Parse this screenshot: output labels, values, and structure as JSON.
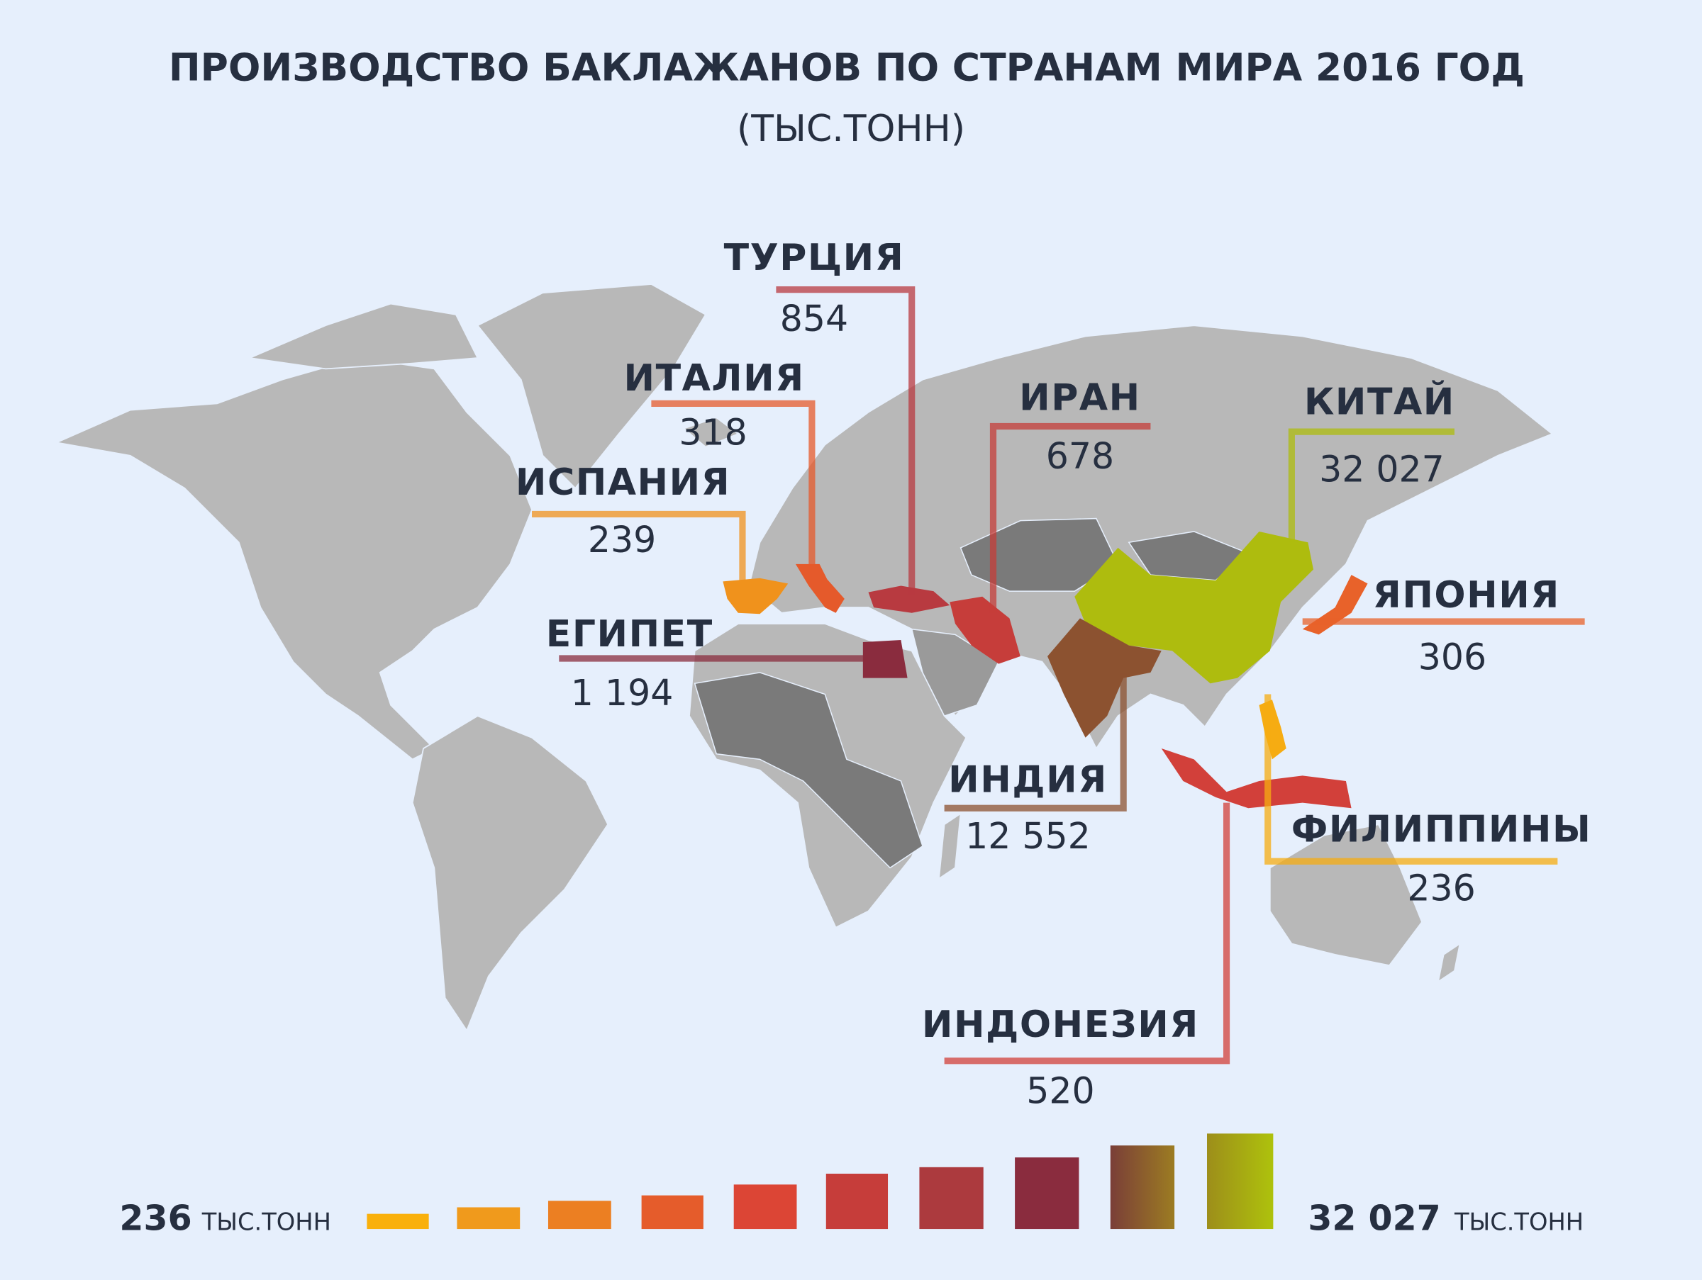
{
  "title": "ПРОИЗВОДСТВО БАКЛАЖАНОВ ПО СТРАНАМ МИРА 2016 ГОД",
  "subtitle": "(ТЫС.ТОНН)",
  "countries": [
    {
      "name": "ТУРЦИЯ",
      "value": "854",
      "color": "#b83a40"
    },
    {
      "name": "ИТАЛИЯ",
      "value": "318",
      "color": "#e55a2b"
    },
    {
      "name": "ИСПАНИЯ",
      "value": "239",
      "color": "#f0921c"
    },
    {
      "name": "ЕГИПЕТ",
      "value": "1 194",
      "color": "#8a2c3e"
    },
    {
      "name": "ИРАН",
      "value": "678",
      "color": "#c63d3a"
    },
    {
      "name": "КИТАЙ",
      "value": "32 027",
      "color": "#aebc0e"
    },
    {
      "name": "ЯПОНИЯ",
      "value": "306",
      "color": "#e8622a"
    },
    {
      "name": "ИНДИЯ",
      "value": "12 552",
      "color": "#8c5230"
    },
    {
      "name": "ФИЛИППИНЫ",
      "value": "236",
      "color": "#f6ac12"
    },
    {
      "name": "ИНДОНЕЗИЯ",
      "value": "520",
      "color": "#d2403a"
    }
  ],
  "legend": {
    "min_value": "236",
    "max_value": "32 027",
    "unit": "ТЫС.ТОНН",
    "colors": [
      "#f9b00c",
      "#f09a1c",
      "#ec7f22",
      "#e55c2b",
      "#dc4535",
      "#c63d3a",
      "#ac3a3e",
      "#8a2c3e",
      "#8a5a30",
      "#aec20c"
    ]
  },
  "colors": {
    "background": "#e6effc",
    "land": "#b8b8b8",
    "text": "#262f40"
  }
}
